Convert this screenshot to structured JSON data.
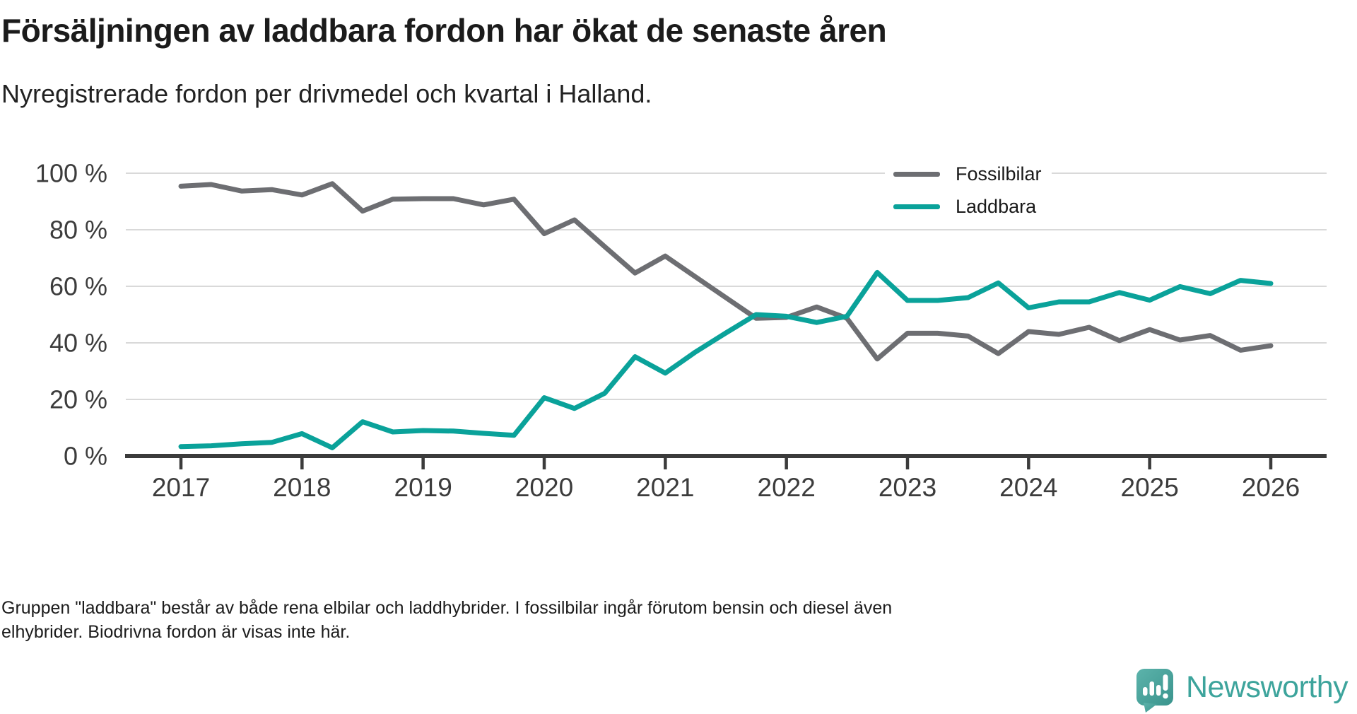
{
  "header": {
    "title": "Försäljningen av laddbara fordon har ökat de senaste åren",
    "subtitle": "Nyregistrerade fordon per drivmedel och kvartal i Halland."
  },
  "legend": [
    {
      "label": "Fossilbilar",
      "color": "#6d6e72"
    },
    {
      "label": "Laddbara",
      "color": "#0aa29a"
    }
  ],
  "footnote": {
    "line1": "Gruppen \"laddbara\" består av både rena elbilar och laddhybrider. I fossilbilar ingår förutom bensin och diesel även",
    "line2": "elhybrider. Biodrivna fordon är visas inte här."
  },
  "branding": {
    "wordmark": "Newsworthy",
    "icon": "newsworthy-logo-icon",
    "color": "#3da49c"
  },
  "colors": {
    "fossil": "#6d6e72",
    "laddbara": "#0aa29a",
    "gridline": "#d9d9d9",
    "axis": "#3b3b3b",
    "tick_label": "#3c3c3c"
  },
  "chart_data": {
    "type": "line",
    "title": "Försäljningen av laddbara fordon har ökat de senaste åren",
    "subtitle": "Nyregistrerade fordon per drivmedel och kvartal i Halland.",
    "x_unit": "quarter",
    "x_start_year": 2017,
    "x_step_years": 0.25,
    "x_tick_labels": [
      "2017",
      "2018",
      "2019",
      "2020",
      "2021",
      "2022",
      "2023",
      "2024",
      "2025",
      "2026"
    ],
    "y_tick_labels": [
      "0 %",
      "20 %",
      "40 %",
      "60 %",
      "80 %",
      "100 %"
    ],
    "yticks": [
      0,
      20,
      40,
      60,
      80,
      100
    ],
    "ylim": [
      0,
      100
    ],
    "grid": "horizontal",
    "legend_position": "inside-top-right",
    "series": [
      {
        "name": "Fossilbilar",
        "color": "#6d6e72",
        "values": [
          95.4,
          96.0,
          93.7,
          94.2,
          92.3,
          96.3,
          86.6,
          90.8,
          91.0,
          91.0,
          88.8,
          90.8,
          78.6,
          83.5,
          74.0,
          64.7,
          70.7,
          63.3,
          56.0,
          48.7,
          49.0,
          52.7,
          48.7,
          34.3,
          43.4,
          43.4,
          42.4,
          36.2,
          44.0,
          43.0,
          45.5,
          40.8,
          44.7,
          41.0,
          42.6,
          37.4,
          39.0
        ]
      },
      {
        "name": "Laddbara",
        "color": "#0aa29a",
        "values": [
          3.3,
          3.6,
          4.3,
          4.8,
          7.9,
          2.9,
          12.1,
          8.5,
          9.0,
          8.8,
          8.0,
          7.3,
          20.6,
          16.8,
          22.2,
          35.1,
          29.3,
          36.8,
          43.5,
          50.0,
          49.4,
          47.2,
          49.4,
          64.9,
          55.0,
          55.0,
          56.0,
          61.2,
          52.4,
          54.5,
          54.5,
          57.8,
          55.1,
          59.9,
          57.4,
          62.1,
          61.0
        ]
      }
    ]
  }
}
